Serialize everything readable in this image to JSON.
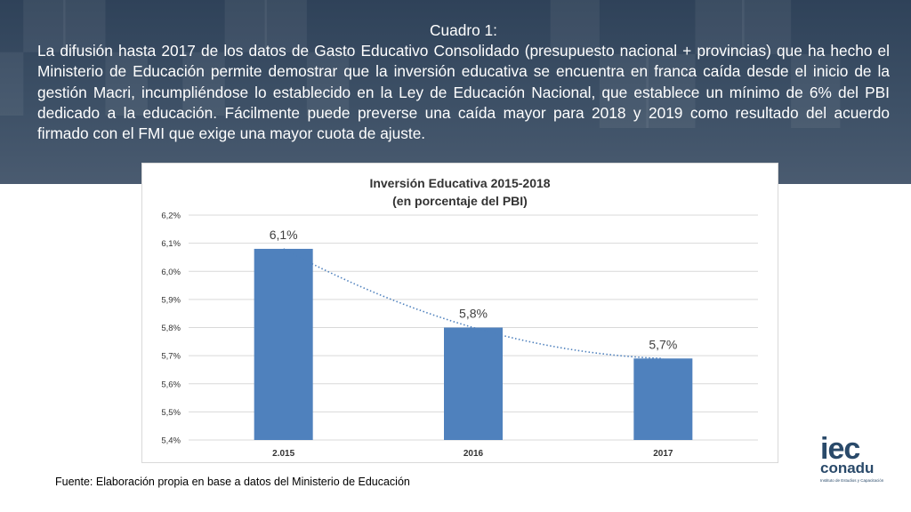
{
  "header": {
    "title": "Cuadro 1:",
    "body": "La difusión hasta 2017 de los datos de Gasto Educativo Consolidado (presupuesto nacional + provincias) que ha hecho el Ministerio de Educación permite demostrar que la inversión educativa se encuentra en franca caída desde el inicio de la gestión Macri, incumpliéndose lo establecido en la Ley de Educación Nacional, que establece un mínimo de 6% del PBI dedicado a la educación. Fácilmente puede preverse una caída mayor para 2018 y 2019 como resultado del acuerdo firmado con el FMI que exige una mayor cuota de ajuste."
  },
  "chart_data": {
    "type": "bar",
    "title": "Inversión Educativa 2015-2018",
    "subtitle": "(en porcentaje del PBI)",
    "categories": [
      "2.015",
      "2016",
      "2017"
    ],
    "values": [
      6.08,
      5.8,
      5.69
    ],
    "data_labels": [
      "6,1%",
      "5,8%",
      "5,7%"
    ],
    "y_ticks": [
      5.4,
      5.5,
      5.6,
      5.7,
      5.8,
      5.9,
      6.0,
      6.1,
      6.2
    ],
    "y_tick_labels": [
      "5,4%",
      "5,5%",
      "5,6%",
      "5,7%",
      "5,8%",
      "5,9%",
      "6,0%",
      "6,1%",
      "6,2%"
    ],
    "ylim": [
      5.4,
      6.2
    ],
    "grid": true,
    "trendline": "dotted",
    "bar_color": "#4f81bd",
    "trend_color": "#4f81bd"
  },
  "source": "Fuente: Elaboración propia en base a datos del Ministerio de Educación",
  "logo": {
    "line1": "iec",
    "line2": "conadu",
    "line3": "Instituto de Estudios y Capacitación"
  }
}
